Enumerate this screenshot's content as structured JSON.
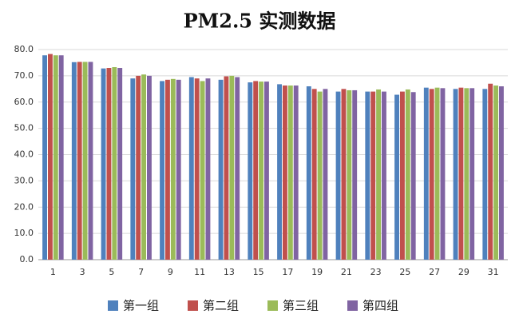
{
  "chart_data": {
    "type": "bar",
    "title": "PM2.5 实测数据",
    "categories": [
      "1",
      "3",
      "5",
      "7",
      "9",
      "11",
      "13",
      "15",
      "17",
      "19",
      "21",
      "23",
      "25",
      "27",
      "29",
      "31"
    ],
    "series": [
      {
        "name": "第一组",
        "color": "#4f81bd",
        "values": [
          77.8,
          75.2,
          72.8,
          69.0,
          68.0,
          69.5,
          68.5,
          67.5,
          66.8,
          66.0,
          64.0,
          64.0,
          62.8,
          65.5,
          65.0,
          65.0
        ]
      },
      {
        "name": "第二组",
        "color": "#c0504d",
        "values": [
          78.3,
          75.3,
          73.0,
          70.0,
          68.5,
          69.0,
          69.8,
          68.0,
          66.3,
          65.0,
          65.0,
          64.0,
          64.0,
          65.0,
          65.5,
          67.0
        ]
      },
      {
        "name": "第三组",
        "color": "#9bbb59",
        "values": [
          77.8,
          75.3,
          73.3,
          70.5,
          68.8,
          68.0,
          70.0,
          67.8,
          66.3,
          64.0,
          64.5,
          64.8,
          64.8,
          65.5,
          65.3,
          66.3
        ]
      },
      {
        "name": "第四组",
        "color": "#8064a2",
        "values": [
          77.8,
          75.3,
          73.0,
          70.0,
          68.5,
          69.0,
          69.5,
          67.8,
          66.3,
          65.0,
          64.5,
          64.0,
          63.8,
          65.3,
          65.3,
          66.0
        ]
      }
    ],
    "ylim": [
      0,
      80
    ],
    "yticks": [
      {
        "value": 0,
        "label": "0.0"
      },
      {
        "value": 10,
        "label": "10.0"
      },
      {
        "value": 20,
        "label": "20.0"
      },
      {
        "value": 30,
        "label": "30.0"
      },
      {
        "value": 40,
        "label": "40.0"
      },
      {
        "value": 50,
        "label": "50.0"
      },
      {
        "value": 60,
        "label": "60.0"
      },
      {
        "value": 70,
        "label": "70.0"
      },
      {
        "value": 80,
        "label": "80.0"
      }
    ],
    "grid": true
  }
}
